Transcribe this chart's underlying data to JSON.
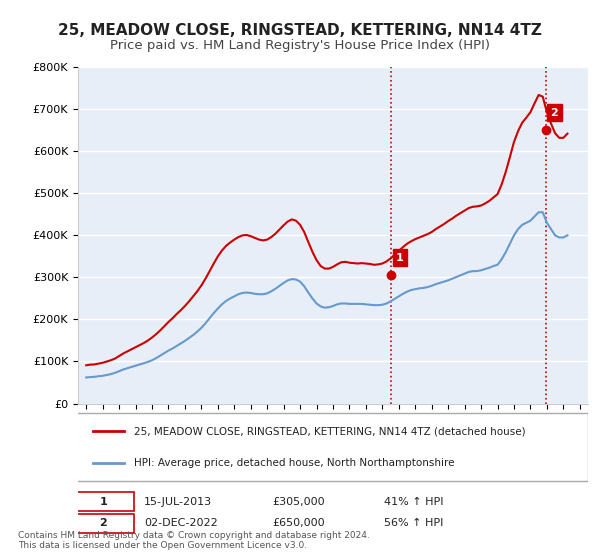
{
  "title": "25, MEADOW CLOSE, RINGSTEAD, KETTERING, NN14 4TZ",
  "subtitle": "Price paid vs. HM Land Registry's House Price Index (HPI)",
  "title_fontsize": 11,
  "subtitle_fontsize": 9.5,
  "background_color": "#ffffff",
  "plot_bg_color": "#e8eef8",
  "grid_color": "#ffffff",
  "ylabel": "",
  "xlabel": "",
  "ylim": [
    0,
    800000
  ],
  "yticks": [
    0,
    100000,
    200000,
    300000,
    400000,
    500000,
    600000,
    700000,
    800000
  ],
  "ytick_labels": [
    "£0",
    "£100K",
    "£200K",
    "£300K",
    "£400K",
    "£500K",
    "£600K",
    "£700K",
    "£800K"
  ],
  "red_line_color": "#cc0000",
  "blue_line_color": "#6699cc",
  "marker_color_red": "#cc0000",
  "marker_color_blue": "#6699cc",
  "vline_color": "#cc0000",
  "vline_style": ":",
  "annotation_box_color": "#cc0000",
  "annotation_text_color": "#ffffff",
  "legend_label_red": "25, MEADOW CLOSE, RINGSTEAD, KETTERING, NN14 4TZ (detached house)",
  "legend_label_blue": "HPI: Average price, detached house, North Northamptonshire",
  "transaction1_label": "1",
  "transaction1_date": "15-JUL-2013",
  "transaction1_price": "£305,000",
  "transaction1_hpi": "41% ↑ HPI",
  "transaction1_year": 2013.54,
  "transaction1_value": 305000,
  "transaction2_label": "2",
  "transaction2_date": "02-DEC-2022",
  "transaction2_price": "£650,000",
  "transaction2_hpi": "56% ↑ HPI",
  "transaction2_year": 2022.92,
  "transaction2_value": 650000,
  "footer_text": "Contains HM Land Registry data © Crown copyright and database right 2024.\nThis data is licensed under the Open Government Licence v3.0.",
  "hpi_years": [
    1995.0,
    1995.25,
    1995.5,
    1995.75,
    1996.0,
    1996.25,
    1996.5,
    1996.75,
    1997.0,
    1997.25,
    1997.5,
    1997.75,
    1998.0,
    1998.25,
    1998.5,
    1998.75,
    1999.0,
    1999.25,
    1999.5,
    1999.75,
    2000.0,
    2000.25,
    2000.5,
    2000.75,
    2001.0,
    2001.25,
    2001.5,
    2001.75,
    2002.0,
    2002.25,
    2002.5,
    2002.75,
    2003.0,
    2003.25,
    2003.5,
    2003.75,
    2004.0,
    2004.25,
    2004.5,
    2004.75,
    2005.0,
    2005.25,
    2005.5,
    2005.75,
    2006.0,
    2006.25,
    2006.5,
    2006.75,
    2007.0,
    2007.25,
    2007.5,
    2007.75,
    2008.0,
    2008.25,
    2008.5,
    2008.75,
    2009.0,
    2009.25,
    2009.5,
    2009.75,
    2010.0,
    2010.25,
    2010.5,
    2010.75,
    2011.0,
    2011.25,
    2011.5,
    2011.75,
    2012.0,
    2012.25,
    2012.5,
    2012.75,
    2013.0,
    2013.25,
    2013.5,
    2013.75,
    2014.0,
    2014.25,
    2014.5,
    2014.75,
    2015.0,
    2015.25,
    2015.5,
    2015.75,
    2016.0,
    2016.25,
    2016.5,
    2016.75,
    2017.0,
    2017.25,
    2017.5,
    2017.75,
    2018.0,
    2018.25,
    2018.5,
    2018.75,
    2019.0,
    2019.25,
    2019.5,
    2019.75,
    2020.0,
    2020.25,
    2020.5,
    2020.75,
    2021.0,
    2021.25,
    2021.5,
    2021.75,
    2022.0,
    2022.25,
    2022.5,
    2022.75,
    2023.0,
    2023.25,
    2023.5,
    2023.75,
    2024.0,
    2024.25
  ],
  "hpi_values": [
    62000,
    63000,
    63500,
    65000,
    66000,
    68000,
    70000,
    73000,
    77000,
    81000,
    84000,
    87000,
    90000,
    93000,
    96000,
    99000,
    103000,
    108000,
    114000,
    120000,
    126000,
    131000,
    137000,
    143000,
    149000,
    156000,
    163000,
    171000,
    180000,
    191000,
    203000,
    215000,
    226000,
    236000,
    244000,
    250000,
    255000,
    260000,
    263000,
    264000,
    263000,
    261000,
    260000,
    260000,
    262000,
    267000,
    273000,
    280000,
    287000,
    293000,
    296000,
    295000,
    290000,
    279000,
    264000,
    250000,
    238000,
    231000,
    228000,
    229000,
    232000,
    236000,
    238000,
    238000,
    237000,
    237000,
    237000,
    237000,
    236000,
    235000,
    234000,
    234000,
    235000,
    238000,
    243000,
    249000,
    255000,
    261000,
    266000,
    270000,
    272000,
    274000,
    275000,
    277000,
    280000,
    284000,
    287000,
    290000,
    293000,
    297000,
    301000,
    305000,
    309000,
    313000,
    315000,
    315000,
    317000,
    320000,
    323000,
    327000,
    330000,
    343000,
    360000,
    380000,
    400000,
    415000,
    425000,
    430000,
    435000,
    445000,
    455000,
    455000,
    430000,
    415000,
    400000,
    395000,
    395000,
    400000
  ],
  "red_years": [
    1995.0,
    1995.25,
    1995.5,
    1995.75,
    1996.0,
    1996.25,
    1996.5,
    1996.75,
    1997.0,
    1997.25,
    1997.5,
    1997.75,
    1998.0,
    1998.25,
    1998.5,
    1998.75,
    1999.0,
    1999.25,
    1999.5,
    1999.75,
    2000.0,
    2000.25,
    2000.5,
    2000.75,
    2001.0,
    2001.25,
    2001.5,
    2001.75,
    2002.0,
    2002.25,
    2002.5,
    2002.75,
    2003.0,
    2003.25,
    2003.5,
    2003.75,
    2004.0,
    2004.25,
    2004.5,
    2004.75,
    2005.0,
    2005.25,
    2005.5,
    2005.75,
    2006.0,
    2006.25,
    2006.5,
    2006.75,
    2007.0,
    2007.25,
    2007.5,
    2007.75,
    2008.0,
    2008.25,
    2008.5,
    2008.75,
    2009.0,
    2009.25,
    2009.5,
    2009.75,
    2010.0,
    2010.25,
    2010.5,
    2010.75,
    2011.0,
    2011.25,
    2011.5,
    2011.75,
    2012.0,
    2012.25,
    2012.5,
    2012.75,
    2013.0,
    2013.25,
    2013.5,
    2013.75,
    2014.0,
    2014.25,
    2014.5,
    2014.75,
    2015.0,
    2015.25,
    2015.5,
    2015.75,
    2016.0,
    2016.25,
    2016.5,
    2016.75,
    2017.0,
    2017.25,
    2017.5,
    2017.75,
    2018.0,
    2018.25,
    2018.5,
    2018.75,
    2019.0,
    2019.25,
    2019.5,
    2019.75,
    2020.0,
    2020.25,
    2020.5,
    2020.75,
    2021.0,
    2021.25,
    2021.5,
    2021.75,
    2022.0,
    2022.25,
    2022.5,
    2022.75,
    2023.0,
    2023.25,
    2023.5,
    2023.75,
    2024.0,
    2024.25
  ],
  "red_values": [
    91000,
    92500,
    93000,
    95000,
    97000,
    100000,
    103000,
    107000,
    113000,
    119000,
    124000,
    129000,
    134000,
    139000,
    144000,
    150000,
    157000,
    165000,
    174000,
    184000,
    194000,
    203000,
    213000,
    222000,
    232000,
    243000,
    255000,
    267000,
    281000,
    297000,
    315000,
    333000,
    350000,
    364000,
    375000,
    383000,
    390000,
    396000,
    400000,
    401000,
    398000,
    394000,
    390000,
    388000,
    390000,
    396000,
    404000,
    414000,
    424000,
    433000,
    438000,
    435000,
    425000,
    408000,
    384000,
    361000,
    341000,
    327000,
    321000,
    321000,
    325000,
    331000,
    336000,
    337000,
    335000,
    334000,
    333000,
    334000,
    333000,
    332000,
    330000,
    331000,
    333000,
    338000,
    345000,
    354000,
    363000,
    372000,
    380000,
    386000,
    391000,
    395000,
    399000,
    403000,
    408000,
    415000,
    421000,
    427000,
    434000,
    440000,
    447000,
    453000,
    459000,
    465000,
    468000,
    469000,
    471000,
    476000,
    482000,
    490000,
    498000,
    521000,
    551000,
    586000,
    622000,
    648000,
    668000,
    680000,
    693000,
    714000,
    734000,
    730000,
    693000,
    666000,
    643000,
    632000,
    632000,
    642000
  ],
  "xlim": [
    1994.5,
    2025.5
  ],
  "xticks": [
    1995,
    1996,
    1997,
    1998,
    1999,
    2000,
    2001,
    2002,
    2003,
    2004,
    2005,
    2006,
    2007,
    2008,
    2009,
    2010,
    2011,
    2012,
    2013,
    2014,
    2015,
    2016,
    2017,
    2018,
    2019,
    2020,
    2021,
    2022,
    2023,
    2024,
    2025
  ]
}
